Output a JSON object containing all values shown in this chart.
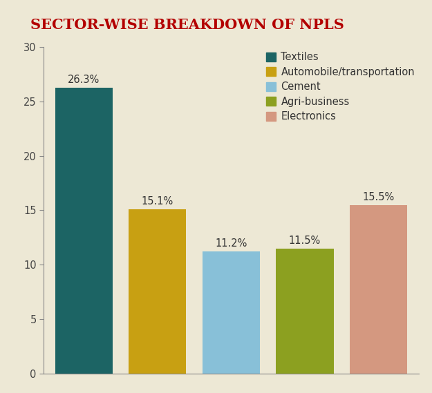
{
  "title": "SECTOR-WISE BREAKDOWN OF NPLS",
  "title_color": "#b30000",
  "background_color": "#ede8d5",
  "plot_bg_color": "#e8e2cc",
  "categories": [
    "Textiles",
    "Automobile/transportation",
    "Cement",
    "Agri-business",
    "Electronics"
  ],
  "values": [
    26.3,
    15.1,
    11.2,
    11.5,
    15.5
  ],
  "labels": [
    "26.3%",
    "15.1%",
    "11.2%",
    "11.5%",
    "15.5%"
  ],
  "bar_colors": [
    "#1c6464",
    "#c8a012",
    "#88c0d8",
    "#8ca020",
    "#d49880"
  ],
  "ylim": [
    0,
    30
  ],
  "yticks": [
    0,
    5,
    10,
    15,
    20,
    25,
    30
  ],
  "legend_labels": [
    "Textiles",
    "Automobile/transportation",
    "Cement",
    "Agri-business",
    "Electronics"
  ],
  "legend_colors": [
    "#1c6464",
    "#c8a012",
    "#88c0d8",
    "#8ca020",
    "#d49880"
  ],
  "label_fontsize": 10.5,
  "title_fontsize": 15,
  "axis_fontsize": 10.5,
  "legend_fontsize": 10.5,
  "bar_width": 0.78
}
